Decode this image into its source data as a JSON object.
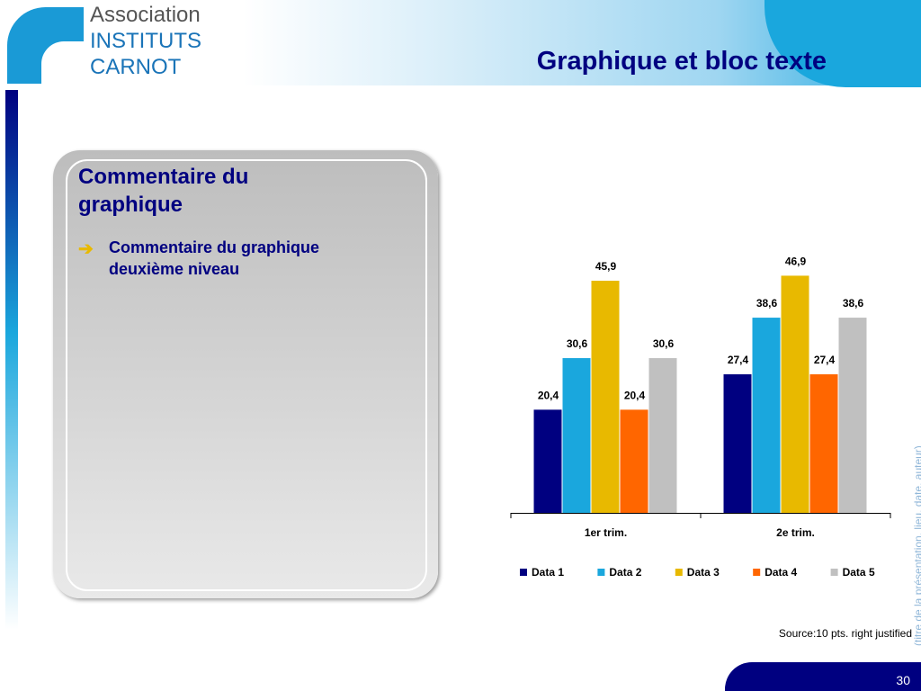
{
  "header": {
    "logo": [
      "Association",
      "INSTITUTS",
      "CARNOT"
    ],
    "title": "Graphique et bloc texte"
  },
  "comment_box": {
    "heading": "Commentaire du graphique",
    "bullet": "Commentaire du graphique deuxième niveau"
  },
  "chart_data": {
    "type": "bar",
    "categories": [
      "1er  trim.",
      "2e  trim."
    ],
    "series": [
      {
        "name": "Data 1",
        "color": "#000080",
        "values": [
          20.4,
          27.4
        ],
        "value_labels": [
          "20,4",
          "27,4"
        ]
      },
      {
        "name": "Data 2",
        "color": "#1aa7dd",
        "values": [
          30.6,
          38.6
        ],
        "value_labels": [
          "30,6",
          "38,6"
        ]
      },
      {
        "name": "Data 3",
        "color": "#e8b900",
        "values": [
          45.9,
          46.9
        ],
        "value_labels": [
          "45,9",
          "46,9"
        ]
      },
      {
        "name": "Data 4",
        "color": "#ff6600",
        "values": [
          20.4,
          27.4
        ],
        "value_labels": [
          "20,4",
          "27,4"
        ]
      },
      {
        "name": "Data 5",
        "color": "#c0c0c0",
        "values": [
          30.6,
          38.6
        ],
        "value_labels": [
          "30,6",
          "38,6"
        ]
      }
    ],
    "ylim": [
      0,
      50
    ],
    "legend": "bottom"
  },
  "source": "Source:10 pts. right justified",
  "footer": {
    "side_text": "(titre de la présentation, lieu, date, auteur)",
    "page_number": "30"
  }
}
